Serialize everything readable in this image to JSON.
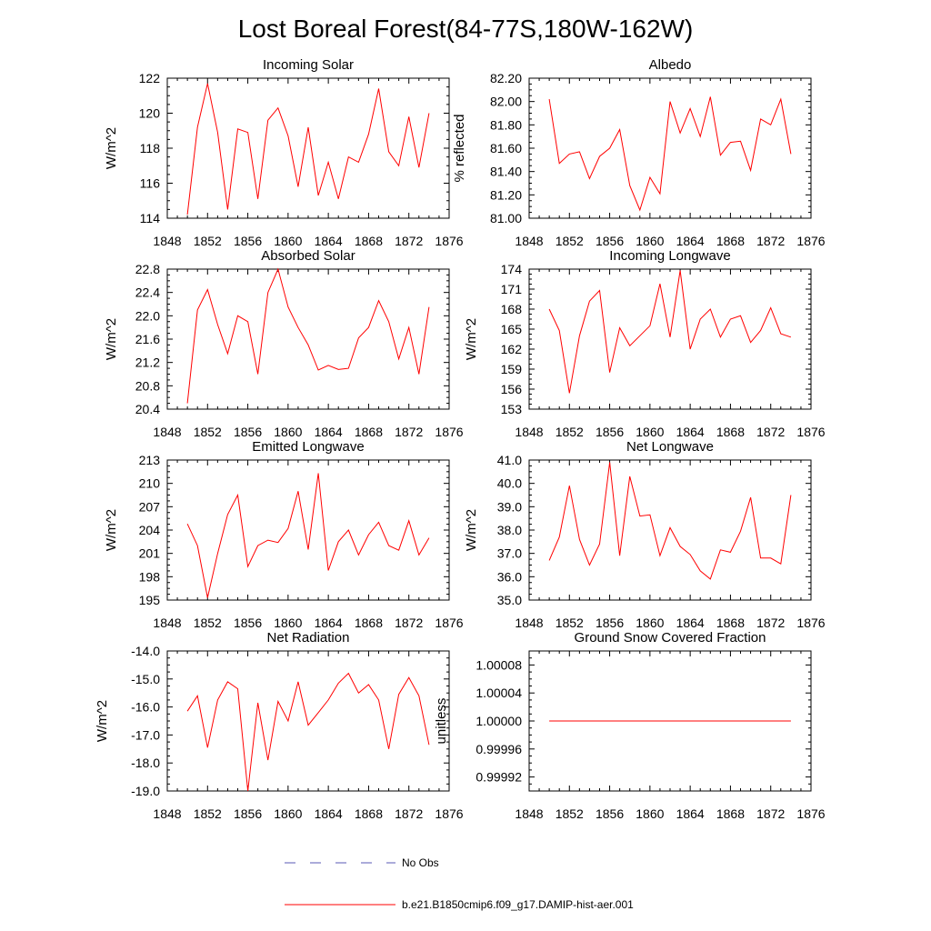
{
  "title": "Lost Boreal Forest(84-77S,180W-162W)",
  "legend": {
    "obs_label": "No Obs",
    "obs_color": "#5a5ab4",
    "model_label": "b.e21.B1850cmip6.f09_g17.DAMIP-hist-aer.001",
    "model_color": "#ff0000"
  },
  "chart_data": [
    {
      "type": "line",
      "title": "Incoming Solar",
      "ylabel": "W/m^2",
      "xlim": [
        1848,
        1876
      ],
      "xticks": [
        "1848",
        "1852",
        "1856",
        "1860",
        "1864",
        "1868",
        "1872",
        "1876"
      ],
      "ylim": [
        114,
        122
      ],
      "yticks": [
        "114",
        "116",
        "118",
        "120",
        "122"
      ],
      "x": [
        1850,
        1851,
        1852,
        1853,
        1854,
        1855,
        1856,
        1857,
        1858,
        1859,
        1860,
        1861,
        1862,
        1863,
        1864,
        1865,
        1866,
        1867,
        1868,
        1869,
        1870,
        1871,
        1872,
        1873,
        1874
      ],
      "series": [
        {
          "values": [
            114.2,
            119.2,
            121.7,
            118.9,
            114.5,
            119.1,
            118.9,
            115.1,
            119.6,
            120.3,
            118.7,
            115.8,
            119.2,
            115.3,
            117.2,
            115.1,
            117.5,
            117.2,
            118.8,
            121.4,
            117.8,
            117.0,
            119.8,
            116.9,
            120.0
          ]
        }
      ]
    },
    {
      "type": "line",
      "title": "Albedo",
      "ylabel": "% reflected",
      "xlim": [
        1848,
        1876
      ],
      "xticks": [
        "1848",
        "1852",
        "1856",
        "1860",
        "1864",
        "1868",
        "1872",
        "1876"
      ],
      "ylim": [
        81.0,
        82.2
      ],
      "yticks": [
        "81.00",
        "81.20",
        "81.40",
        "81.60",
        "81.80",
        "82.00",
        "82.20"
      ],
      "x": [
        1850,
        1851,
        1852,
        1853,
        1854,
        1855,
        1856,
        1857,
        1858,
        1859,
        1860,
        1861,
        1862,
        1863,
        1864,
        1865,
        1866,
        1867,
        1868,
        1869,
        1870,
        1871,
        1872,
        1873,
        1874
      ],
      "series": [
        {
          "values": [
            82.02,
            81.47,
            81.55,
            81.57,
            81.34,
            81.53,
            81.6,
            81.76,
            81.28,
            81.07,
            81.35,
            81.21,
            82.0,
            81.73,
            81.94,
            81.7,
            82.04,
            81.54,
            81.65,
            81.66,
            81.41,
            81.85,
            81.8,
            82.02,
            81.55
          ]
        }
      ]
    },
    {
      "type": "line",
      "title": "Absorbed Solar",
      "ylabel": "W/m^2",
      "xlim": [
        1848,
        1876
      ],
      "xticks": [
        "1848",
        "1852",
        "1856",
        "1860",
        "1864",
        "1868",
        "1872",
        "1876"
      ],
      "ylim": [
        20.4,
        22.8
      ],
      "yticks": [
        "20.4",
        "20.8",
        "21.2",
        "21.6",
        "22.0",
        "22.4",
        "22.8"
      ],
      "x": [
        1850,
        1851,
        1852,
        1853,
        1854,
        1855,
        1856,
        1857,
        1858,
        1859,
        1860,
        1861,
        1862,
        1863,
        1864,
        1865,
        1866,
        1867,
        1868,
        1869,
        1870,
        1871,
        1872,
        1873,
        1874
      ],
      "series": [
        {
          "values": [
            20.5,
            22.1,
            22.45,
            21.85,
            21.35,
            22.0,
            21.9,
            21.0,
            22.4,
            22.8,
            22.15,
            21.8,
            21.5,
            21.07,
            21.15,
            21.08,
            21.1,
            21.62,
            21.8,
            22.26,
            21.9,
            21.26,
            21.8,
            21.0,
            22.15
          ]
        }
      ]
    },
    {
      "type": "line",
      "title": "Incoming Longwave",
      "ylabel": "W/m^2",
      "xlim": [
        1848,
        1876
      ],
      "xticks": [
        "1848",
        "1852",
        "1856",
        "1860",
        "1864",
        "1868",
        "1872",
        "1876"
      ],
      "ylim": [
        153,
        174
      ],
      "yticks": [
        "153",
        "156",
        "159",
        "162",
        "165",
        "168",
        "171",
        "174"
      ],
      "x": [
        1850,
        1851,
        1852,
        1853,
        1854,
        1855,
        1856,
        1857,
        1858,
        1859,
        1860,
        1861,
        1862,
        1863,
        1864,
        1865,
        1866,
        1867,
        1868,
        1869,
        1870,
        1871,
        1872,
        1873,
        1874
      ],
      "series": [
        {
          "values": [
            168.0,
            164.8,
            155.4,
            164.0,
            169.2,
            170.8,
            158.5,
            165.2,
            162.5,
            164.0,
            165.5,
            171.8,
            163.8,
            173.8,
            162.0,
            166.5,
            168.0,
            163.8,
            166.5,
            167.0,
            163.0,
            164.8,
            168.2,
            164.3,
            163.8
          ]
        }
      ]
    },
    {
      "type": "line",
      "title": "Emitted Longwave",
      "ylabel": "W/m^2",
      "xlim": [
        1848,
        1876
      ],
      "xticks": [
        "1848",
        "1852",
        "1856",
        "1860",
        "1864",
        "1868",
        "1872",
        "1876"
      ],
      "ylim": [
        195,
        213
      ],
      "yticks": [
        "195",
        "198",
        "201",
        "204",
        "207",
        "210",
        "213"
      ],
      "x": [
        1850,
        1851,
        1852,
        1853,
        1854,
        1855,
        1856,
        1857,
        1858,
        1859,
        1860,
        1861,
        1862,
        1863,
        1864,
        1865,
        1866,
        1867,
        1868,
        1869,
        1870,
        1871,
        1872,
        1873,
        1874
      ],
      "series": [
        {
          "values": [
            204.8,
            202.0,
            195.3,
            201.0,
            206.0,
            208.5,
            199.3,
            202.0,
            202.7,
            202.4,
            204.2,
            209.0,
            201.5,
            211.3,
            198.8,
            202.5,
            204.0,
            200.8,
            203.4,
            205.0,
            202.0,
            201.4,
            205.2,
            200.8,
            203.0
          ]
        }
      ]
    },
    {
      "type": "line",
      "title": "Net Longwave",
      "ylabel": "W/m^2",
      "xlim": [
        1848,
        1876
      ],
      "xticks": [
        "1848",
        "1852",
        "1856",
        "1860",
        "1864",
        "1868",
        "1872",
        "1876"
      ],
      "ylim": [
        35.0,
        41.0
      ],
      "yticks": [
        "35.0",
        "36.0",
        "37.0",
        "38.0",
        "39.0",
        "40.0",
        "41.0"
      ],
      "x": [
        1850,
        1851,
        1852,
        1853,
        1854,
        1855,
        1856,
        1857,
        1858,
        1859,
        1860,
        1861,
        1862,
        1863,
        1864,
        1865,
        1866,
        1867,
        1868,
        1869,
        1870,
        1871,
        1872,
        1873,
        1874
      ],
      "series": [
        {
          "values": [
            36.7,
            37.7,
            39.9,
            37.6,
            36.5,
            37.4,
            40.9,
            36.9,
            40.3,
            38.6,
            38.65,
            36.9,
            38.1,
            37.3,
            36.95,
            36.25,
            35.9,
            37.15,
            37.05,
            37.95,
            39.4,
            36.8,
            36.8,
            36.55,
            39.5
          ]
        }
      ]
    },
    {
      "type": "line",
      "title": "Net Radiation",
      "ylabel": "W/m^2",
      "xlim": [
        1848,
        1876
      ],
      "xticks": [
        "1848",
        "1852",
        "1856",
        "1860",
        "1864",
        "1868",
        "1872",
        "1876"
      ],
      "ylim": [
        -19.0,
        -14.0
      ],
      "yticks": [
        "-19.0",
        "-18.0",
        "-17.0",
        "-16.0",
        "-15.0",
        "-14.0"
      ],
      "x": [
        1850,
        1851,
        1852,
        1853,
        1854,
        1855,
        1856,
        1857,
        1858,
        1859,
        1860,
        1861,
        1862,
        1863,
        1864,
        1865,
        1866,
        1867,
        1868,
        1869,
        1870,
        1871,
        1872,
        1873,
        1874
      ],
      "series": [
        {
          "values": [
            -16.15,
            -15.6,
            -17.45,
            -15.75,
            -15.1,
            -15.35,
            -19.0,
            -15.85,
            -17.9,
            -15.8,
            -16.5,
            -15.1,
            -16.65,
            -16.2,
            -15.75,
            -15.15,
            -14.8,
            -15.5,
            -15.2,
            -15.75,
            -17.5,
            -15.55,
            -14.95,
            -15.6,
            -17.35
          ]
        }
      ]
    },
    {
      "type": "line",
      "title": "Ground Snow Covered Fraction",
      "ylabel": "unitless",
      "xlim": [
        1848,
        1876
      ],
      "xticks": [
        "1848",
        "1852",
        "1856",
        "1860",
        "1864",
        "1868",
        "1872",
        "1876"
      ],
      "ylim": [
        0.9999,
        1.0001
      ],
      "yticks": [
        "0.99992",
        "0.99996",
        "1.00000",
        "1.00004",
        "1.00008"
      ],
      "ytick_values": [
        0.99992,
        0.99996,
        1.0,
        1.00004,
        1.00008
      ],
      "x": [
        1850,
        1851,
        1852,
        1853,
        1854,
        1855,
        1856,
        1857,
        1858,
        1859,
        1860,
        1861,
        1862,
        1863,
        1864,
        1865,
        1866,
        1867,
        1868,
        1869,
        1870,
        1871,
        1872,
        1873,
        1874
      ],
      "series": [
        {
          "values": [
            1,
            1,
            1,
            1,
            1,
            1,
            1,
            1,
            1,
            1,
            1,
            1,
            1,
            1,
            1,
            1,
            1,
            1,
            1,
            1,
            1,
            1,
            1,
            1,
            1
          ]
        }
      ]
    }
  ]
}
